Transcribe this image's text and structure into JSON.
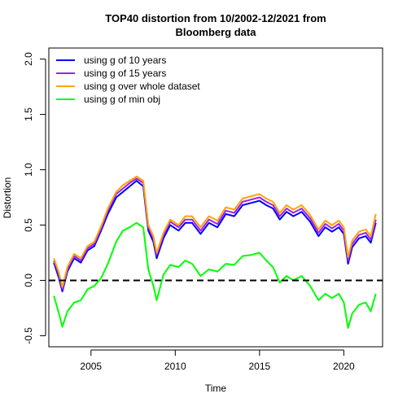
{
  "chart_data": {
    "type": "line",
    "title_lines": [
      "TOP40 distortion from 10/2002-12/2021 from",
      "Bloomberg data"
    ],
    "xlabel": "Time",
    "ylabel": "Distortion",
    "xlim": [
      2002.5,
      2022.3
    ],
    "ylim": [
      -0.6,
      2.1
    ],
    "x_ticks": [
      2005,
      2010,
      2015,
      2020
    ],
    "x_tick_labels": [
      "2005",
      "2010",
      "2015",
      "2020"
    ],
    "y_ticks": [
      -0.5,
      0.0,
      0.5,
      1.0,
      1.5,
      2.0
    ],
    "y_tick_labels": [
      "-0.5",
      "0.0",
      "0.5",
      "1.0",
      "1.5",
      "2.0"
    ],
    "grid": false,
    "legend_position": "top-left",
    "reference_line": {
      "y": 0.0,
      "style": "dashed",
      "color": "#000000"
    },
    "series": [
      {
        "name": "using g of 10 years",
        "color": "#0000ff",
        "x": [
          2002.8,
          2003.1,
          2003.3,
          2003.6,
          2004.0,
          2004.4,
          2004.8,
          2005.2,
          2005.6,
          2006.0,
          2006.5,
          2006.9,
          2007.3,
          2007.7,
          2008.1,
          2008.4,
          2008.7,
          2008.9,
          2009.3,
          2009.7,
          2010.2,
          2010.6,
          2011.0,
          2011.5,
          2012.0,
          2012.5,
          2013.0,
          2013.5,
          2014.0,
          2014.5,
          2015.0,
          2015.4,
          2015.8,
          2016.2,
          2016.6,
          2017.0,
          2017.5,
          2018.0,
          2018.5,
          2018.9,
          2019.3,
          2019.7,
          2020.0,
          2020.25,
          2020.5,
          2020.9,
          2021.3,
          2021.6,
          2021.9
        ],
        "y": [
          0.16,
          0.02,
          -0.1,
          0.08,
          0.2,
          0.16,
          0.27,
          0.31,
          0.45,
          0.6,
          0.75,
          0.8,
          0.85,
          0.9,
          0.85,
          0.45,
          0.35,
          0.2,
          0.38,
          0.5,
          0.45,
          0.52,
          0.52,
          0.42,
          0.52,
          0.48,
          0.6,
          0.58,
          0.68,
          0.7,
          0.72,
          0.68,
          0.65,
          0.55,
          0.62,
          0.58,
          0.62,
          0.53,
          0.4,
          0.48,
          0.44,
          0.48,
          0.42,
          0.15,
          0.3,
          0.38,
          0.4,
          0.34,
          0.52
        ]
      },
      {
        "name": "using g of 15 years",
        "color": "#a020f0",
        "x": [
          2002.8,
          2003.1,
          2003.3,
          2003.6,
          2004.0,
          2004.4,
          2004.8,
          2005.2,
          2005.6,
          2006.0,
          2006.5,
          2006.9,
          2007.3,
          2007.7,
          2008.1,
          2008.4,
          2008.7,
          2008.9,
          2009.3,
          2009.7,
          2010.2,
          2010.6,
          2011.0,
          2011.5,
          2012.0,
          2012.5,
          2013.0,
          2013.5,
          2014.0,
          2014.5,
          2015.0,
          2015.4,
          2015.8,
          2016.2,
          2016.6,
          2017.0,
          2017.5,
          2018.0,
          2018.5,
          2018.9,
          2019.3,
          2019.7,
          2020.0,
          2020.25,
          2020.5,
          2020.9,
          2021.3,
          2021.6,
          2021.9
        ],
        "y": [
          0.18,
          0.05,
          -0.08,
          0.1,
          0.22,
          0.18,
          0.29,
          0.33,
          0.47,
          0.63,
          0.78,
          0.83,
          0.88,
          0.92,
          0.88,
          0.48,
          0.38,
          0.23,
          0.41,
          0.53,
          0.48,
          0.55,
          0.55,
          0.45,
          0.55,
          0.51,
          0.63,
          0.61,
          0.71,
          0.73,
          0.75,
          0.71,
          0.68,
          0.58,
          0.65,
          0.61,
          0.65,
          0.56,
          0.43,
          0.51,
          0.47,
          0.51,
          0.45,
          0.18,
          0.33,
          0.41,
          0.43,
          0.37,
          0.55
        ]
      },
      {
        "name": "using g over whole dataset",
        "color": "#ffa500",
        "x": [
          2002.8,
          2003.1,
          2003.3,
          2003.6,
          2004.0,
          2004.4,
          2004.8,
          2005.2,
          2005.6,
          2006.0,
          2006.5,
          2006.9,
          2007.3,
          2007.7,
          2008.1,
          2008.4,
          2008.7,
          2008.9,
          2009.3,
          2009.7,
          2010.2,
          2010.6,
          2011.0,
          2011.5,
          2012.0,
          2012.5,
          2013.0,
          2013.5,
          2014.0,
          2014.5,
          2015.0,
          2015.4,
          2015.8,
          2016.2,
          2016.6,
          2017.0,
          2017.5,
          2018.0,
          2018.5,
          2018.9,
          2019.3,
          2019.7,
          2020.0,
          2020.25,
          2020.5,
          2020.9,
          2021.3,
          2021.6,
          2021.9
        ],
        "y": [
          0.2,
          0.07,
          -0.06,
          0.12,
          0.24,
          0.2,
          0.31,
          0.35,
          0.49,
          0.65,
          0.8,
          0.86,
          0.9,
          0.94,
          0.9,
          0.5,
          0.4,
          0.25,
          0.43,
          0.55,
          0.5,
          0.58,
          0.58,
          0.48,
          0.58,
          0.54,
          0.66,
          0.64,
          0.74,
          0.76,
          0.78,
          0.74,
          0.71,
          0.61,
          0.68,
          0.64,
          0.68,
          0.59,
          0.46,
          0.54,
          0.5,
          0.54,
          0.48,
          0.21,
          0.36,
          0.44,
          0.46,
          0.4,
          0.6
        ]
      },
      {
        "name": "using g of min obj",
        "color": "#00ff00",
        "x": [
          2002.8,
          2003.1,
          2003.3,
          2003.6,
          2004.0,
          2004.4,
          2004.8,
          2005.2,
          2005.6,
          2006.0,
          2006.5,
          2006.9,
          2007.3,
          2007.7,
          2008.1,
          2008.4,
          2008.7,
          2008.9,
          2009.3,
          2009.7,
          2010.2,
          2010.6,
          2011.0,
          2011.5,
          2012.0,
          2012.5,
          2013.0,
          2013.5,
          2014.0,
          2014.5,
          2015.0,
          2015.4,
          2015.8,
          2016.2,
          2016.6,
          2017.0,
          2017.5,
          2018.0,
          2018.5,
          2018.9,
          2019.3,
          2019.7,
          2020.0,
          2020.25,
          2020.5,
          2020.9,
          2021.3,
          2021.6,
          2021.9
        ],
        "y": [
          -0.14,
          -0.3,
          -0.42,
          -0.28,
          -0.2,
          -0.18,
          -0.08,
          -0.05,
          0.02,
          0.15,
          0.35,
          0.45,
          0.48,
          0.52,
          0.48,
          0.1,
          -0.05,
          -0.18,
          0.05,
          0.14,
          0.12,
          0.18,
          0.15,
          0.04,
          0.1,
          0.08,
          0.15,
          0.14,
          0.22,
          0.23,
          0.25,
          0.18,
          0.12,
          -0.02,
          0.04,
          0.0,
          0.04,
          -0.05,
          -0.18,
          -0.12,
          -0.16,
          -0.12,
          -0.2,
          -0.43,
          -0.3,
          -0.22,
          -0.2,
          -0.28,
          -0.12
        ]
      }
    ]
  }
}
